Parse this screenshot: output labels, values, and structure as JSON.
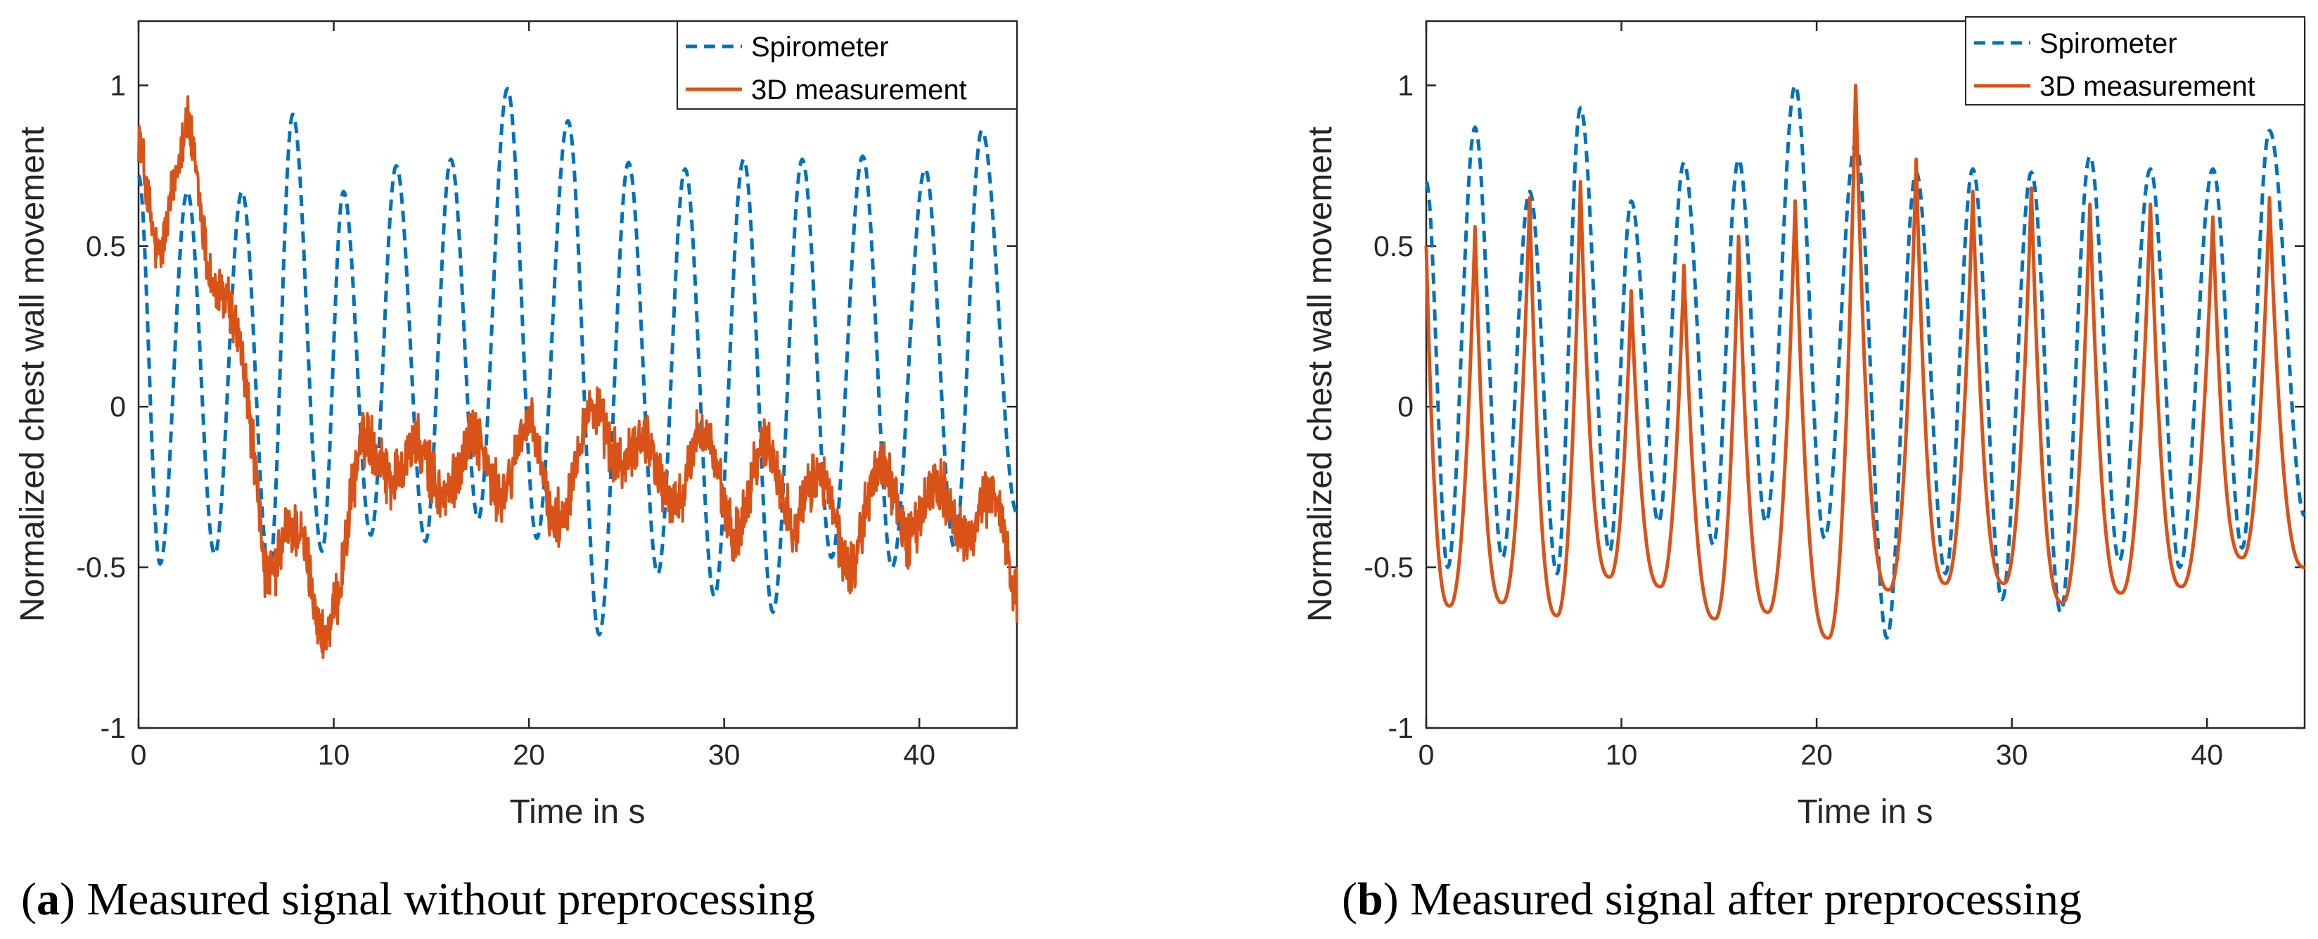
{
  "chart_data": [
    {
      "type": "line",
      "caption": {
        "letter": "a",
        "text": " Measured signal without preprocessing"
      },
      "xlabel": "Time in s",
      "ylabel": "Normalized chest wall movement",
      "xlim": [
        0,
        45
      ],
      "ylim": [
        -1,
        1.2
      ],
      "xticks": [
        0,
        10,
        20,
        30,
        40
      ],
      "yticks": [
        -1,
        -0.5,
        0,
        0.5,
        1
      ],
      "xtick_labels": [
        "0",
        "10",
        "20",
        "30",
        "40"
      ],
      "ytick_labels": [
        "-1",
        "-0.5",
        "0",
        "0.5",
        "1"
      ],
      "legend": {
        "position": "top-right",
        "entries": [
          "Spirometer",
          "3D measurement"
        ]
      },
      "series": [
        {
          "name": "Spirometer",
          "style": "dashed",
          "color": "#0072BD",
          "kind": "spirometer",
          "peaks": [
            [
              2.5,
              0.67
            ],
            [
              5.3,
              0.67
            ],
            [
              7.9,
              0.91
            ],
            [
              10.5,
              0.67
            ],
            [
              13.2,
              0.75
            ],
            [
              16.0,
              0.77
            ],
            [
              18.9,
              0.99
            ],
            [
              22.0,
              0.89
            ],
            [
              25.1,
              0.76
            ],
            [
              28.0,
              0.74
            ],
            [
              31.0,
              0.77
            ],
            [
              34.0,
              0.77
            ],
            [
              37.1,
              0.78
            ],
            [
              40.3,
              0.74
            ],
            [
              43.2,
              0.86
            ]
          ],
          "troughs": [
            [
              1.1,
              -0.49
            ],
            [
              3.9,
              -0.46
            ],
            [
              6.7,
              -0.51
            ],
            [
              9.4,
              -0.45
            ],
            [
              11.9,
              -0.4
            ],
            [
              14.7,
              -0.42
            ],
            [
              17.4,
              -0.35
            ],
            [
              20.4,
              -0.41
            ],
            [
              23.6,
              -0.71
            ],
            [
              26.6,
              -0.52
            ],
            [
              29.5,
              -0.59
            ],
            [
              32.5,
              -0.64
            ],
            [
              35.5,
              -0.47
            ],
            [
              38.6,
              -0.5
            ],
            [
              41.8,
              -0.44
            ],
            [
              45.0,
              -0.33
            ]
          ],
          "start_value": 0.72
        },
        {
          "name": "3D measurement",
          "style": "solid",
          "color": "#D95319",
          "kind": "noisy",
          "baseline": [
            [
              0,
              0.8
            ],
            [
              1,
              0.57
            ],
            [
              2.5,
              0.78
            ],
            [
              3.5,
              0.52
            ],
            [
              4.5,
              0.4
            ],
            [
              5.5,
              -0.05
            ],
            [
              6.5,
              -0.45
            ],
            [
              7.5,
              -0.35
            ],
            [
              8.5,
              -0.55
            ],
            [
              9.3,
              -0.68
            ],
            [
              10.5,
              -0.45
            ],
            [
              11.5,
              -0.2
            ],
            [
              12.5,
              -0.08
            ],
            [
              14.5,
              -0.25
            ],
            [
              16.0,
              -0.15
            ],
            [
              18.0,
              -0.22
            ],
            [
              19.5,
              -0.1
            ],
            [
              21.0,
              -0.3
            ],
            [
              22.5,
              -0.15
            ],
            [
              24.5,
              -0.05
            ],
            [
              26.5,
              -0.25
            ],
            [
              28.5,
              -0.15
            ],
            [
              30.5,
              -0.3
            ],
            [
              32.5,
              -0.2
            ],
            [
              34.5,
              -0.3
            ],
            [
              36.5,
              -0.4
            ],
            [
              38.5,
              -0.25
            ],
            [
              40.5,
              -0.35
            ],
            [
              42.5,
              -0.3
            ],
            [
              44.0,
              -0.4
            ],
            [
              45.0,
              -0.5
            ]
          ],
          "ripple_amplitude": 0.11,
          "noise_amplitude": 0.07
        }
      ]
    },
    {
      "type": "line",
      "caption": {
        "letter": "b",
        "text": " Measured signal after preprocessing"
      },
      "xlabel": "Time in s",
      "ylabel": "Normalized chest wall movement",
      "xlim": [
        0,
        45
      ],
      "ylim": [
        -1,
        1.2
      ],
      "xticks": [
        0,
        10,
        20,
        30,
        40
      ],
      "yticks": [
        -1,
        -0.5,
        0,
        0.5,
        1
      ],
      "xtick_labels": [
        "0",
        "10",
        "20",
        "30",
        "40"
      ],
      "ytick_labels": [
        "-1",
        "-0.5",
        "0",
        "0.5",
        "1"
      ],
      "legend": {
        "position": "top-right",
        "entries": [
          "Spirometer",
          "3D measurement"
        ]
      },
      "series": [
        {
          "name": "Spirometer",
          "style": "dashed",
          "color": "#0072BD",
          "kind": "spirometer",
          "peaks": [
            [
              2.5,
              0.87
            ],
            [
              5.3,
              0.67
            ],
            [
              7.9,
              0.93
            ],
            [
              10.5,
              0.64
            ],
            [
              13.2,
              0.76
            ],
            [
              16.0,
              0.77
            ],
            [
              18.9,
              1.0
            ],
            [
              22.0,
              0.82
            ],
            [
              25.1,
              0.73
            ],
            [
              28.0,
              0.74
            ],
            [
              31.0,
              0.73
            ],
            [
              34.0,
              0.78
            ],
            [
              37.1,
              0.74
            ],
            [
              40.3,
              0.74
            ],
            [
              43.2,
              0.86
            ]
          ],
          "troughs": [
            [
              1.1,
              -0.5
            ],
            [
              3.9,
              -0.47
            ],
            [
              6.7,
              -0.52
            ],
            [
              9.4,
              -0.45
            ],
            [
              11.9,
              -0.36
            ],
            [
              14.7,
              -0.43
            ],
            [
              17.4,
              -0.36
            ],
            [
              20.4,
              -0.41
            ],
            [
              23.6,
              -0.72
            ],
            [
              26.6,
              -0.52
            ],
            [
              29.5,
              -0.6
            ],
            [
              32.5,
              -0.64
            ],
            [
              35.5,
              -0.48
            ],
            [
              38.6,
              -0.5
            ],
            [
              41.8,
              -0.44
            ],
            [
              45.0,
              -0.34
            ]
          ],
          "start_value": 0.7
        },
        {
          "name": "3D measurement",
          "style": "solid",
          "color": "#D95319",
          "kind": "pulses",
          "peaks": [
            [
              2.5,
              0.56
            ],
            [
              5.3,
              0.65
            ],
            [
              7.9,
              0.7
            ],
            [
              10.5,
              0.36
            ],
            [
              13.2,
              0.44
            ],
            [
              16.0,
              0.53
            ],
            [
              18.9,
              0.64
            ],
            [
              22.0,
              1.0
            ],
            [
              25.1,
              0.77
            ],
            [
              28.0,
              0.67
            ],
            [
              31.0,
              0.68
            ],
            [
              34.0,
              0.63
            ],
            [
              37.1,
              0.63
            ],
            [
              40.3,
              0.59
            ],
            [
              43.2,
              0.65
            ]
          ],
          "troughs": [
            [
              1.2,
              -0.62
            ],
            [
              3.9,
              -0.61
            ],
            [
              6.7,
              -0.65
            ],
            [
              9.4,
              -0.53
            ],
            [
              12.0,
              -0.56
            ],
            [
              14.8,
              -0.66
            ],
            [
              17.5,
              -0.64
            ],
            [
              20.6,
              -0.72
            ],
            [
              23.7,
              -0.57
            ],
            [
              26.6,
              -0.55
            ],
            [
              29.6,
              -0.55
            ],
            [
              32.6,
              -0.61
            ],
            [
              35.6,
              -0.58
            ],
            [
              38.7,
              -0.56
            ],
            [
              41.8,
              -0.47
            ],
            [
              45.0,
              -0.5
            ]
          ],
          "start_value": 0.5
        }
      ]
    }
  ]
}
